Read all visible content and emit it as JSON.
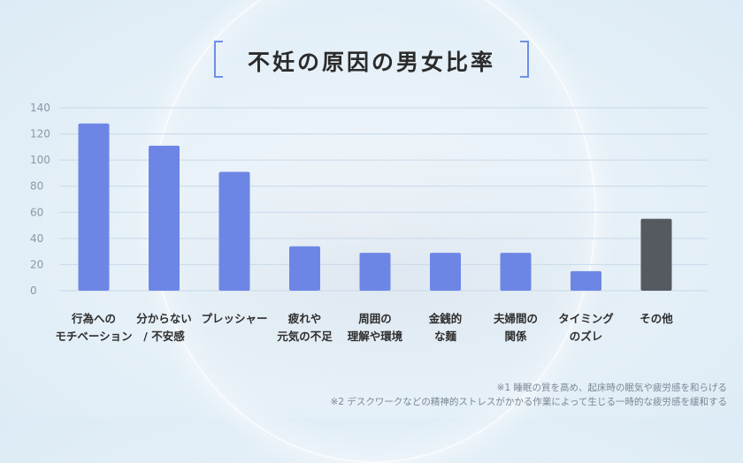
{
  "chart_data": {
    "type": "bar",
    "title": "不妊の原因の男女比率",
    "xlabel": "",
    "ylabel": "",
    "ylim": [
      0,
      140
    ],
    "yticks": [
      0,
      20,
      40,
      60,
      80,
      100,
      120,
      140
    ],
    "grid": true,
    "categories": [
      [
        "行為への",
        "モチベーション"
      ],
      [
        "分からない",
        "/ 不安感"
      ],
      [
        "プレッシャー"
      ],
      [
        "疲れや",
        "元気の不足"
      ],
      [
        "周囲の",
        "理解や環境"
      ],
      [
        "金銭的",
        "な麺"
      ],
      [
        "夫婦間の",
        "関係"
      ],
      [
        "タイミング",
        "のズレ"
      ],
      [
        "その他"
      ]
    ],
    "values": [
      128,
      111,
      91,
      34,
      29,
      29,
      29,
      15,
      55
    ],
    "colors": [
      "#6d86e6",
      "#6d86e6",
      "#6d86e6",
      "#6d86e6",
      "#6d86e6",
      "#6d86e6",
      "#6d86e6",
      "#6d86e6",
      "#555a60"
    ]
  },
  "notes": [
    "※1 睡眠の質を高め、起床時の眠気や疲労感を和らげる",
    "※2 デスクワークなどの精神的ストレスがかかる作業によって生じる一時的な疲労感を緩和する"
  ],
  "colors": {
    "accent": "#6d86e6",
    "other": "#555a60",
    "bracket": "#6f90e6"
  }
}
